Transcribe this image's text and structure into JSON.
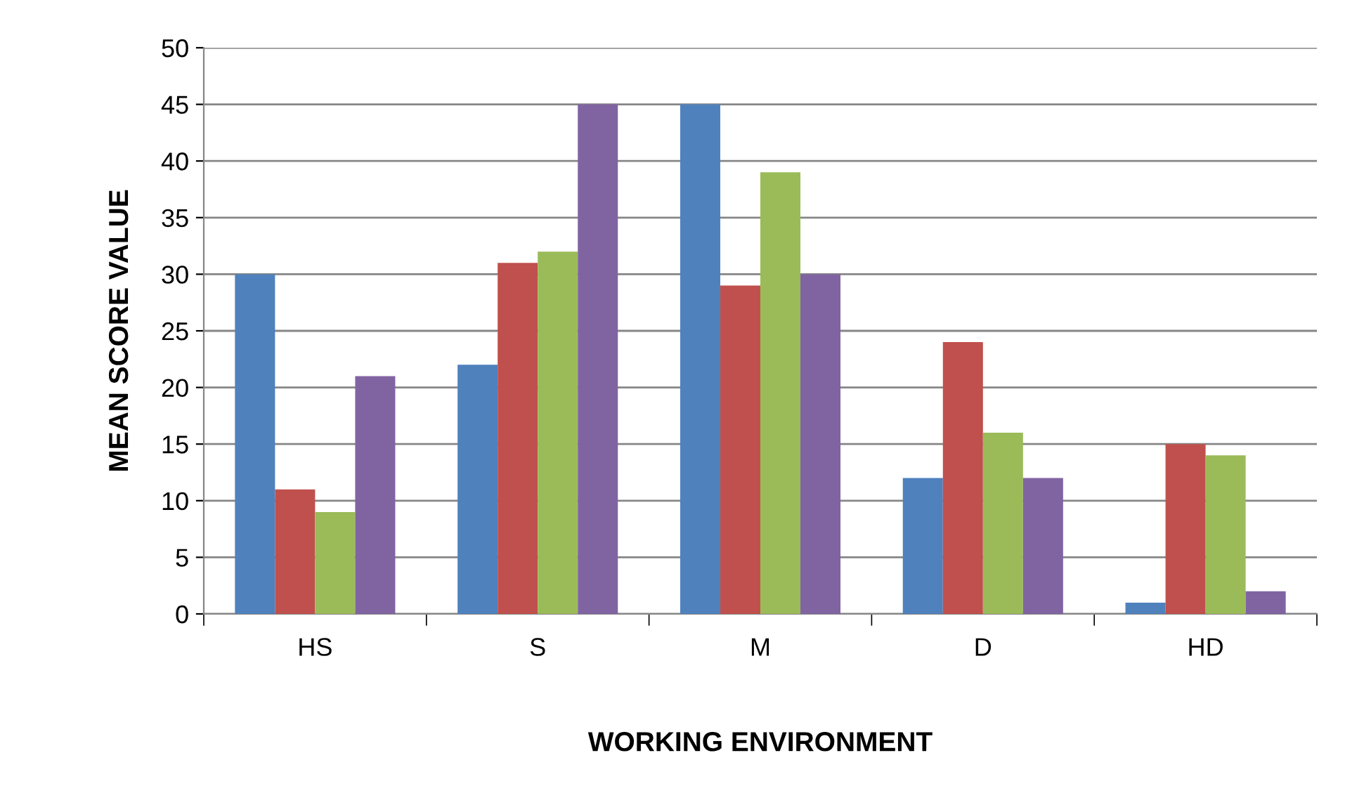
{
  "chart_data": {
    "type": "bar",
    "xlabel": "WORKING ENVIRONMENT",
    "ylabel": "MEAN SCORE VALUE",
    "categories": [
      "HS",
      "S",
      "M",
      "D",
      "HD"
    ],
    "series": [
      {
        "color": "#4f81bd",
        "values": [
          30,
          22,
          45,
          12,
          1
        ]
      },
      {
        "color": "#c0504d",
        "values": [
          11,
          31,
          29,
          24,
          15
        ]
      },
      {
        "color": "#9bbb59",
        "values": [
          9,
          32,
          39,
          16,
          14
        ]
      },
      {
        "color": "#8064a2",
        "values": [
          21,
          45,
          30,
          12,
          2
        ]
      }
    ],
    "ylim": [
      0,
      50
    ],
    "yticks": [
      0,
      5,
      10,
      15,
      20,
      25,
      30,
      35,
      40,
      45,
      50
    ],
    "grid": "y",
    "legend": false
  }
}
